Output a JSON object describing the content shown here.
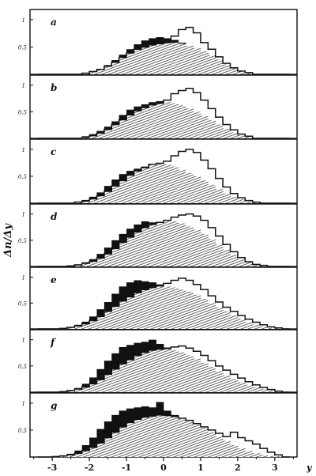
{
  "chart_data": {
    "type": "bar",
    "layout": "stacked-panels",
    "xlabel": "y",
    "ylabel": "Δn/Δy",
    "xlim": [
      -3.6,
      3.6
    ],
    "ylim": [
      0,
      1.1
    ],
    "xticks": [
      -3,
      -2,
      -1,
      0,
      1,
      2,
      3
    ],
    "x_tick_labels": [
      "-3",
      "-2",
      "-1",
      "0",
      "1",
      "2",
      "3"
    ],
    "bin_width": 0.2,
    "bin_centers": [
      -3.3,
      -3.1,
      -2.9,
      -2.7,
      -2.5,
      -2.3,
      -2.1,
      -1.9,
      -1.7,
      -1.5,
      -1.3,
      -1.1,
      -0.9,
      -0.7,
      -0.5,
      -0.3,
      -0.1,
      0.1,
      0.3,
      0.5,
      0.7,
      0.9,
      1.1,
      1.3,
      1.5,
      1.7,
      1.9,
      2.1,
      2.3,
      2.5,
      2.7,
      2.9,
      3.1,
      3.3
    ],
    "series_styles": [
      {
        "name": "",
        "style": "black-filled"
      },
      {
        "name": "",
        "style": "hatched"
      },
      {
        "name": "",
        "style": "open-outline"
      }
    ],
    "panels": [
      {
        "letter": "a",
        "y_tick_labels": [
          "1",
          "0.5"
        ],
        "black": [
          0,
          0,
          0,
          0,
          0,
          0,
          0.03,
          0.06,
          0.1,
          0.17,
          0.26,
          0.36,
          0.46,
          0.55,
          0.62,
          0.66,
          0.68,
          0.66,
          0.63,
          0.58,
          0.52,
          0.46,
          0.4,
          0.3,
          0.22,
          0.14,
          0.08,
          0.04,
          0.02,
          0,
          0,
          0,
          0,
          0
        ],
        "hatched": [
          0,
          0,
          0,
          0,
          0,
          0,
          0.02,
          0.05,
          0.09,
          0.15,
          0.22,
          0.31,
          0.39,
          0.46,
          0.5,
          0.54,
          0.56,
          0.57,
          0.58,
          0.56,
          0.52,
          0.48,
          0.42,
          0.35,
          0.27,
          0.18,
          0.11,
          0.06,
          0.03,
          0,
          0,
          0,
          0,
          0
        ],
        "open": [
          0,
          0,
          0,
          0,
          0,
          0,
          0.02,
          0.05,
          0.09,
          0.15,
          0.22,
          0.31,
          0.39,
          0.46,
          0.5,
          0.54,
          0.56,
          0.6,
          0.7,
          0.82,
          0.86,
          0.76,
          0.58,
          0.46,
          0.32,
          0.2,
          0.12,
          0.06,
          0.03,
          0,
          0,
          0,
          0,
          0
        ]
      },
      {
        "letter": "b",
        "y_tick_labels": [
          "1",
          "0.5"
        ],
        "black": [
          0,
          0,
          0,
          0,
          0,
          0,
          0.04,
          0.08,
          0.14,
          0.22,
          0.32,
          0.44,
          0.54,
          0.6,
          0.64,
          0.68,
          0.7,
          0.66,
          0.62,
          0.56,
          0.5,
          0.42,
          0.34,
          0.26,
          0.18,
          0.11,
          0.06,
          0.03,
          0.01,
          0,
          0,
          0,
          0,
          0
        ],
        "hatched": [
          0,
          0,
          0,
          0,
          0,
          0,
          0.02,
          0.05,
          0.1,
          0.17,
          0.26,
          0.35,
          0.44,
          0.52,
          0.58,
          0.63,
          0.66,
          0.68,
          0.66,
          0.62,
          0.56,
          0.5,
          0.42,
          0.34,
          0.26,
          0.18,
          0.11,
          0.06,
          0.03,
          0,
          0,
          0,
          0,
          0
        ],
        "open": [
          0,
          0,
          0,
          0,
          0,
          0,
          0.02,
          0.05,
          0.1,
          0.17,
          0.26,
          0.35,
          0.44,
          0.52,
          0.58,
          0.63,
          0.66,
          0.72,
          0.84,
          0.9,
          0.94,
          0.86,
          0.72,
          0.56,
          0.4,
          0.26,
          0.16,
          0.08,
          0.04,
          0,
          0,
          0,
          0,
          0
        ]
      },
      {
        "letter": "c",
        "y_tick_labels": [
          "1",
          "0.5"
        ],
        "black": [
          0,
          0,
          0,
          0,
          0,
          0.03,
          0.06,
          0.12,
          0.2,
          0.32,
          0.44,
          0.54,
          0.6,
          0.64,
          0.68,
          0.7,
          0.68,
          0.64,
          0.6,
          0.54,
          0.48,
          0.4,
          0.32,
          0.24,
          0.17,
          0.11,
          0.06,
          0.03,
          0.01,
          0,
          0,
          0,
          0,
          0
        ],
        "hatched": [
          0,
          0,
          0,
          0,
          0,
          0.02,
          0.04,
          0.08,
          0.14,
          0.22,
          0.32,
          0.42,
          0.52,
          0.6,
          0.66,
          0.72,
          0.74,
          0.72,
          0.68,
          0.62,
          0.56,
          0.5,
          0.42,
          0.34,
          0.26,
          0.18,
          0.12,
          0.07,
          0.03,
          0.01,
          0,
          0,
          0,
          0
        ],
        "open": [
          0,
          0,
          0,
          0,
          0,
          0.02,
          0.04,
          0.08,
          0.14,
          0.22,
          0.32,
          0.42,
          0.52,
          0.6,
          0.66,
          0.72,
          0.74,
          0.78,
          0.88,
          0.96,
          1.0,
          0.94,
          0.8,
          0.64,
          0.46,
          0.3,
          0.18,
          0.1,
          0.05,
          0.02,
          0,
          0,
          0,
          0
        ]
      },
      {
        "letter": "d",
        "y_tick_labels": [
          "1",
          "0.5"
        ],
        "black": [
          0,
          0,
          0,
          0,
          0.02,
          0.04,
          0.08,
          0.14,
          0.24,
          0.36,
          0.5,
          0.62,
          0.72,
          0.8,
          0.86,
          0.84,
          0.8,
          0.76,
          0.72,
          0.66,
          0.6,
          0.52,
          0.42,
          0.32,
          0.24,
          0.16,
          0.1,
          0.05,
          0.02,
          0.01,
          0,
          0,
          0,
          0
        ],
        "hatched": [
          0,
          0,
          0,
          0,
          0.01,
          0.03,
          0.06,
          0.1,
          0.16,
          0.24,
          0.34,
          0.46,
          0.56,
          0.66,
          0.74,
          0.8,
          0.84,
          0.86,
          0.86,
          0.82,
          0.76,
          0.7,
          0.62,
          0.52,
          0.42,
          0.32,
          0.22,
          0.14,
          0.08,
          0.04,
          0.02,
          0,
          0,
          0
        ],
        "open": [
          0,
          0,
          0,
          0,
          0.01,
          0.03,
          0.06,
          0.1,
          0.16,
          0.24,
          0.34,
          0.46,
          0.56,
          0.66,
          0.74,
          0.8,
          0.84,
          0.88,
          0.94,
          0.98,
          1.0,
          0.96,
          0.88,
          0.74,
          0.58,
          0.42,
          0.28,
          0.17,
          0.09,
          0.04,
          0.02,
          0,
          0,
          0
        ]
      },
      {
        "letter": "e",
        "y_tick_labels": [
          "1",
          "0.5"
        ],
        "black": [
          0,
          0,
          0,
          0.02,
          0.04,
          0.08,
          0.14,
          0.24,
          0.38,
          0.52,
          0.68,
          0.82,
          0.9,
          0.94,
          0.92,
          0.9,
          0.86,
          0.8,
          0.74,
          0.68,
          0.6,
          0.52,
          0.42,
          0.34,
          0.26,
          0.19,
          0.13,
          0.08,
          0.05,
          0.03,
          0.01,
          0,
          0,
          0
        ],
        "hatched": [
          0,
          0,
          0,
          0.01,
          0.03,
          0.06,
          0.1,
          0.16,
          0.24,
          0.34,
          0.44,
          0.54,
          0.62,
          0.7,
          0.76,
          0.8,
          0.82,
          0.82,
          0.8,
          0.76,
          0.72,
          0.66,
          0.58,
          0.5,
          0.42,
          0.34,
          0.26,
          0.19,
          0.13,
          0.08,
          0.05,
          0.02,
          0.01,
          0
        ],
        "open": [
          0,
          0,
          0,
          0.01,
          0.03,
          0.06,
          0.1,
          0.16,
          0.24,
          0.34,
          0.44,
          0.54,
          0.62,
          0.7,
          0.76,
          0.8,
          0.84,
          0.88,
          0.94,
          0.98,
          0.94,
          0.86,
          0.76,
          0.64,
          0.52,
          0.42,
          0.34,
          0.26,
          0.19,
          0.13,
          0.08,
          0.04,
          0.02,
          0
        ]
      },
      {
        "letter": "f",
        "y_tick_labels": [
          "1",
          "0.5"
        ],
        "black": [
          0,
          0,
          0,
          0.02,
          0.04,
          0.08,
          0.16,
          0.28,
          0.44,
          0.6,
          0.74,
          0.86,
          0.9,
          0.94,
          0.96,
          1.0,
          0.92,
          0.84,
          0.78,
          0.7,
          0.62,
          0.54,
          0.46,
          0.38,
          0.3,
          0.23,
          0.16,
          0.11,
          0.07,
          0.04,
          0.02,
          0.01,
          0,
          0
        ],
        "hatched": [
          0,
          0,
          0,
          0.01,
          0.03,
          0.06,
          0.1,
          0.16,
          0.24,
          0.34,
          0.44,
          0.54,
          0.62,
          0.7,
          0.76,
          0.8,
          0.82,
          0.82,
          0.8,
          0.76,
          0.7,
          0.64,
          0.56,
          0.48,
          0.4,
          0.32,
          0.25,
          0.19,
          0.14,
          0.1,
          0.06,
          0.03,
          0.01,
          0
        ],
        "open": [
          0,
          0,
          0,
          0.01,
          0.03,
          0.06,
          0.1,
          0.16,
          0.24,
          0.34,
          0.44,
          0.54,
          0.62,
          0.7,
          0.76,
          0.8,
          0.82,
          0.84,
          0.86,
          0.88,
          0.84,
          0.78,
          0.7,
          0.6,
          0.5,
          0.42,
          0.34,
          0.27,
          0.2,
          0.14,
          0.09,
          0.05,
          0.02,
          0
        ]
      },
      {
        "letter": "g",
        "y_tick_labels": [
          "1",
          "0.5"
        ],
        "black": [
          0,
          0,
          0.01,
          0.03,
          0.06,
          0.12,
          0.22,
          0.36,
          0.52,
          0.66,
          0.78,
          0.86,
          0.9,
          0.92,
          0.94,
          0.92,
          1.02,
          0.86,
          0.78,
          0.7,
          0.62,
          0.54,
          0.46,
          0.38,
          0.3,
          0.22,
          0.16,
          0.11,
          0.07,
          0.04,
          0.02,
          0.01,
          0,
          0
        ],
        "hatched": [
          0,
          0,
          0.01,
          0.02,
          0.04,
          0.07,
          0.12,
          0.18,
          0.26,
          0.36,
          0.46,
          0.56,
          0.64,
          0.7,
          0.74,
          0.76,
          0.78,
          0.76,
          0.74,
          0.7,
          0.66,
          0.6,
          0.54,
          0.46,
          0.38,
          0.3,
          0.22,
          0.16,
          0.11,
          0.07,
          0.04,
          0.02,
          0.01,
          0
        ],
        "open": [
          0,
          0,
          0.01,
          0.02,
          0.04,
          0.07,
          0.12,
          0.18,
          0.26,
          0.36,
          0.46,
          0.56,
          0.64,
          0.7,
          0.74,
          0.76,
          0.78,
          0.78,
          0.76,
          0.72,
          0.68,
          0.62,
          0.56,
          0.5,
          0.44,
          0.38,
          0.46,
          0.36,
          0.3,
          0.24,
          0.16,
          0.09,
          0.04,
          0
        ]
      }
    ]
  }
}
